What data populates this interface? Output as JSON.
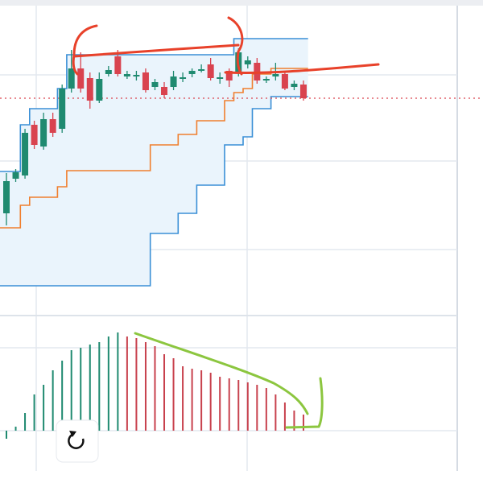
{
  "chart_data": [
    {
      "type": "candlestick",
      "open": [
        120,
        163,
        167,
        230,
        203,
        237,
        225,
        275,
        300,
        288,
        260,
        293,
        315,
        290,
        290,
        295,
        277,
        277,
        277,
        287,
        293,
        297,
        305,
        287,
        297,
        295,
        305,
        307,
        285,
        290,
        293,
        277,
        280
      ],
      "high": [
        170,
        175,
        225,
        235,
        245,
        245,
        280,
        323,
        320,
        295,
        295,
        303,
        323,
        297,
        297,
        300,
        287,
        283,
        297,
        295,
        300,
        305,
        313,
        295,
        300,
        325,
        315,
        313,
        290,
        307,
        297,
        285,
        285
      ],
      "low": [
        105,
        159,
        163,
        200,
        199,
        215,
        220,
        270,
        270,
        250,
        257,
        290,
        290,
        287,
        285,
        270,
        273,
        263,
        273,
        283,
        289,
        295,
        285,
        281,
        277,
        290,
        300,
        281,
        282,
        285,
        273,
        273,
        260
      ],
      "close": [
        160,
        171,
        220,
        205,
        237,
        220,
        275,
        300,
        275,
        260,
        287,
        298,
        293,
        293,
        292,
        273,
        283,
        267,
        290,
        289,
        297,
        299,
        288,
        289,
        285,
        320,
        310,
        285,
        287,
        293,
        275,
        281,
        263
      ],
      "up_color": "#1f8a70",
      "down_color": "#d9434f",
      "channel": {
        "upper": [
          172,
          172,
          230,
          250,
          250,
          250,
          275,
          317,
          317,
          317,
          317,
          317,
          317,
          317,
          317,
          317,
          317,
          317,
          317,
          317,
          317,
          317,
          317,
          317,
          317,
          337,
          337,
          337,
          337,
          337,
          337,
          337,
          337
        ],
        "middle": [
          102,
          102,
          130,
          140,
          140,
          140,
          153,
          173,
          173,
          173,
          173,
          173,
          173,
          173,
          173,
          173,
          205,
          205,
          205,
          218,
          218,
          235,
          235,
          235,
          260,
          270,
          275,
          293,
          293,
          300,
          300,
          300,
          300
        ],
        "lower": [
          30,
          30,
          30,
          30,
          30,
          30,
          30,
          30,
          30,
          30,
          30,
          30,
          30,
          30,
          30,
          30,
          95,
          95,
          95,
          120,
          120,
          155,
          155,
          155,
          205,
          205,
          215,
          250,
          250,
          265,
          265,
          265,
          265
        ],
        "band_color": "#3a8fd6",
        "middle_color": "#f07f2e",
        "fill": "#eaf4fc"
      },
      "last_price": 263,
      "last_price_color": "#d9434f",
      "ylim": [
        0,
        385
      ],
      "yticks": [
        75,
        185,
        292
      ],
      "grid": true
    },
    {
      "type": "bar",
      "values": [
        -10,
        5,
        22,
        45,
        57,
        75,
        87,
        100,
        103,
        107,
        110,
        117,
        122,
        117,
        115,
        110,
        105,
        95,
        90,
        80,
        77,
        75,
        72,
        67,
        65,
        63,
        60,
        57,
        53,
        45,
        35,
        25,
        20
      ],
      "colors": [
        "#1f8a70",
        "#1f8a70",
        "#1f8a70",
        "#1f8a70",
        "#1f8a70",
        "#1f8a70",
        "#1f8a70",
        "#1f8a70",
        "#1f8a70",
        "#1f8a70",
        "#1f8a70",
        "#1f8a70",
        "#1f8a70",
        "#c8414d",
        "#c8414d",
        "#c8414d",
        "#c8414d",
        "#c8414d",
        "#c8414d",
        "#c8414d",
        "#c8414d",
        "#c8414d",
        "#c8414d",
        "#c8414d",
        "#c8414d",
        "#c8414d",
        "#c8414d",
        "#c8414d",
        "#c8414d",
        "#c8414d",
        "#c8414d",
        "#c8414d",
        "#c8414d"
      ],
      "ylim": [
        -50,
        140
      ],
      "yticks": [
        0,
        103
      ],
      "grid": true
    }
  ]
}
